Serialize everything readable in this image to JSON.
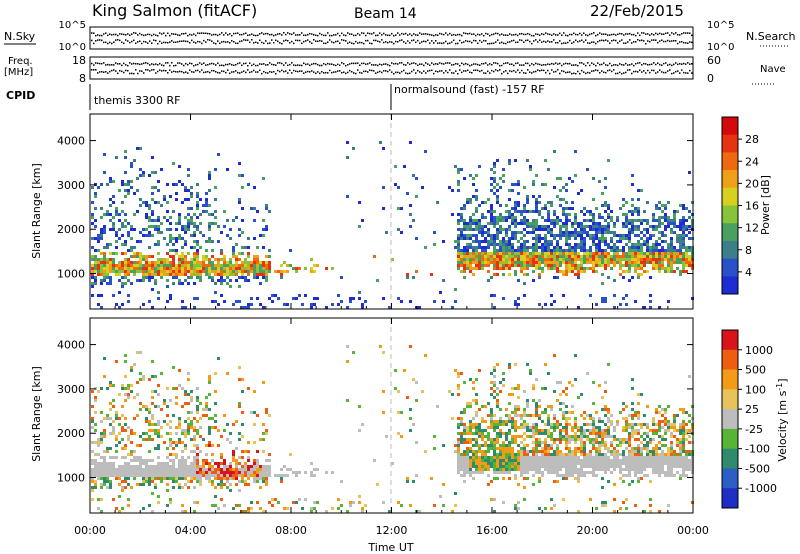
{
  "header": {
    "station": "King Salmon (fitACF)",
    "beam": "Beam 14",
    "date": "22/Feb/2015"
  },
  "top_panels": {
    "nsky_label": "N.Sky",
    "nsky_ticks": [
      "10^5",
      "10^0"
    ],
    "nsearch_label": "N.Search",
    "nsearch_ticks": [
      "10^5",
      "10^0"
    ],
    "freq_label": "Freq.",
    "freq_unit": "[MHz]",
    "freq_ticks": [
      "18",
      "8"
    ],
    "nave_label": "Nave",
    "nave_ticks": [
      "60",
      "0"
    ],
    "cpid_label": "CPID",
    "cpid_left": "themis 3300 RF",
    "cpid_right": "normalsound (fast) -157 RF"
  },
  "colors": {
    "power": [
      "#1e2dd2",
      "#2a52c8",
      "#3c7e8a",
      "#4aa060",
      "#86c43a",
      "#d8d020",
      "#f0a018",
      "#ee6a10",
      "#e63312",
      "#d40a0a"
    ],
    "velocity": [
      "#1f2ec4",
      "#2c5ec6",
      "#2f8a6e",
      "#58b436",
      "#bdbdbd",
      "#e8c25a",
      "#f39a16",
      "#ee5e10",
      "#d8141a"
    ]
  },
  "chart_data": [
    {
      "type": "heatmap",
      "name": "power",
      "ylabel": "Slant Range [km]",
      "yticks": [
        "4000",
        "3000",
        "2000",
        "1000"
      ],
      "ylim": [
        200,
        4600
      ],
      "xlim": [
        0,
        24
      ],
      "colorbar_label": "Power [dB]",
      "colorbar_ticks": [
        "28",
        "24",
        "20",
        "16",
        "12",
        "8",
        "4"
      ],
      "colorbar_range": [
        0,
        32
      ]
    },
    {
      "type": "heatmap",
      "name": "velocity",
      "ylabel": "Slant Range [km]",
      "yticks": [
        "4000",
        "3000",
        "2000",
        "1000"
      ],
      "ylim": [
        200,
        4600
      ],
      "xlim": [
        0,
        24
      ],
      "colorbar_label": "Velocity [m s",
      "colorbar_label_sup": "-1",
      "colorbar_label_end": "]",
      "colorbar_ticks": [
        "1000",
        "500",
        "100",
        "25",
        "-25",
        "-100",
        "-500",
        "-1000"
      ]
    }
  ],
  "xaxis": {
    "ticks": [
      "00:00",
      "04:00",
      "08:00",
      "12:00",
      "16:00",
      "20:00",
      "00:00"
    ],
    "label": "Time UT"
  }
}
